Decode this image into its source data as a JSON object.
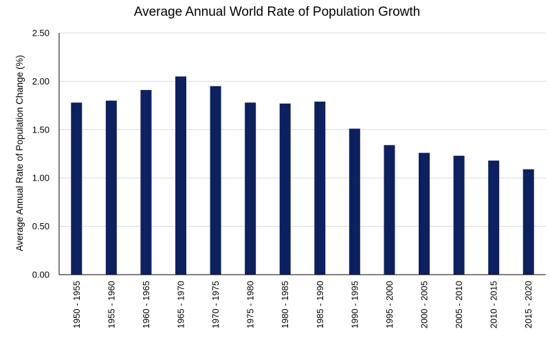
{
  "chart_data": {
    "type": "bar",
    "title": "Average Annual World Rate of Population Growth",
    "xlabel": "",
    "ylabel": "Average Annual Rate of Population Change (%)",
    "categories": [
      "1950 - 1955",
      "1955 - 1960",
      "1960 - 1965",
      "1965 - 1970",
      "1970 - 1975",
      "1975 - 1980",
      "1980 - 1985",
      "1985 - 1990",
      "1990 - 1995",
      "1995 - 2000",
      "2000 - 2005",
      "2005 - 2010",
      "2010 - 2015",
      "2015 - 2020"
    ],
    "values": [
      1.78,
      1.8,
      1.91,
      2.05,
      1.95,
      1.78,
      1.77,
      1.79,
      1.51,
      1.34,
      1.26,
      1.23,
      1.18,
      1.09
    ],
    "ylim": [
      0,
      2.5
    ],
    "yticks": [
      "0.00",
      "0.50",
      "1.00",
      "1.50",
      "2.00",
      "2.50"
    ],
    "grid": true,
    "legend": "none",
    "bar_color": "#0d2160"
  }
}
